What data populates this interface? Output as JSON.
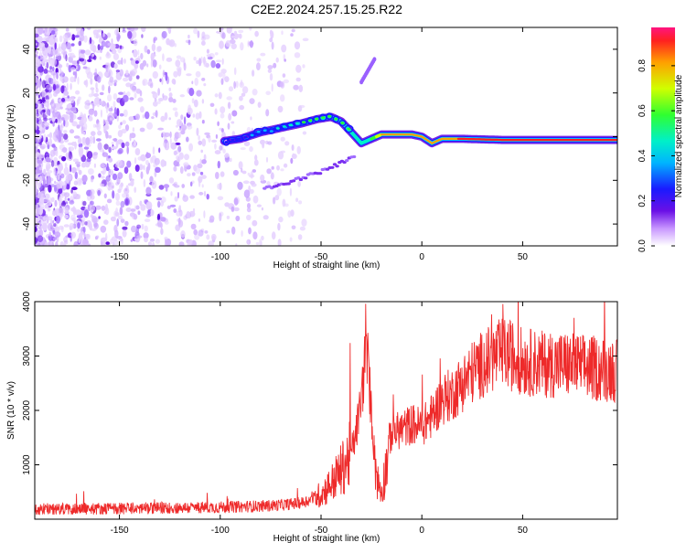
{
  "title": "C2E2.2024.257.15.25.R22",
  "chart_data": [
    {
      "type": "heatmap",
      "xlabel": "Height of straight line (km)",
      "ylabel": "Frequency (Hz)",
      "xlim": [
        -192,
        97
      ],
      "ylim": [
        -50,
        50
      ],
      "xticks": [
        -150,
        -100,
        -50,
        0,
        50
      ],
      "yticks": [
        -40,
        -20,
        0,
        20,
        40
      ],
      "colorbar": {
        "label": "Normalized spectral amplitude",
        "range": [
          0,
          0.97
        ],
        "ticks": [
          0.0,
          0.2,
          0.4,
          0.6,
          0.8
        ]
      },
      "ridge": {
        "x": [
          -98,
          -90,
          -80,
          -70,
          -60,
          -52,
          -45,
          -40,
          -35,
          -30,
          -25,
          -20,
          -15,
          -10,
          -5,
          0,
          5,
          10,
          20,
          40,
          60,
          80,
          97
        ],
        "y": [
          -2,
          -1,
          2,
          4,
          6,
          8,
          9,
          7,
          2,
          -3,
          -1,
          1,
          1,
          1,
          1,
          0,
          -3,
          -1,
          -1,
          -1.5,
          -1.5,
          -1.5,
          -1.5
        ],
        "amplitude": [
          0.15,
          0.2,
          0.3,
          0.35,
          0.45,
          0.5,
          0.55,
          0.55,
          0.5,
          0.5,
          0.6,
          0.85,
          0.9,
          0.9,
          0.9,
          0.9,
          0.85,
          0.9,
          0.95,
          0.95,
          0.95,
          0.95,
          0.95
        ]
      },
      "side_branch": {
        "x": [
          -78,
          -70,
          -60,
          -50,
          -40,
          -33
        ],
        "y": [
          -24,
          -22,
          -19,
          -16,
          -12,
          -9
        ]
      },
      "upper_blob": {
        "x": -27,
        "y": 30
      }
    },
    {
      "type": "line",
      "xlabel": "Height of straight line (km)",
      "ylabel": "SNR (10 * v/v)",
      "xlim": [
        -192,
        97
      ],
      "ylim": [
        0,
        4000
      ],
      "xticks": [
        -150,
        -100,
        -50,
        0,
        50
      ],
      "yticks": [
        1000,
        2000,
        3000,
        4000
      ],
      "series": [
        {
          "color": "#ee2a2a",
          "x": [
            -192,
            -180,
            -160,
            -140,
            -120,
            -100,
            -90,
            -80,
            -70,
            -60,
            -55,
            -50,
            -45,
            -40,
            -36,
            -33,
            -30,
            -28,
            -26,
            -24,
            -22,
            -20,
            -18,
            -16,
            -14,
            -10,
            -5,
            0,
            5,
            10,
            15,
            20,
            25,
            30,
            35,
            40,
            45,
            50,
            60,
            70,
            80,
            90,
            97
          ],
          "y": [
            180,
            190,
            195,
            200,
            210,
            220,
            230,
            240,
            260,
            300,
            360,
            460,
            650,
            900,
            1150,
            1500,
            2200,
            3000,
            2500,
            1400,
            700,
            500,
            900,
            1500,
            1600,
            1650,
            1750,
            1700,
            1900,
            2200,
            2300,
            2500,
            2700,
            2850,
            2950,
            3050,
            3000,
            2900,
            2850,
            2850,
            2800,
            2750,
            2750
          ]
        }
      ]
    }
  ]
}
